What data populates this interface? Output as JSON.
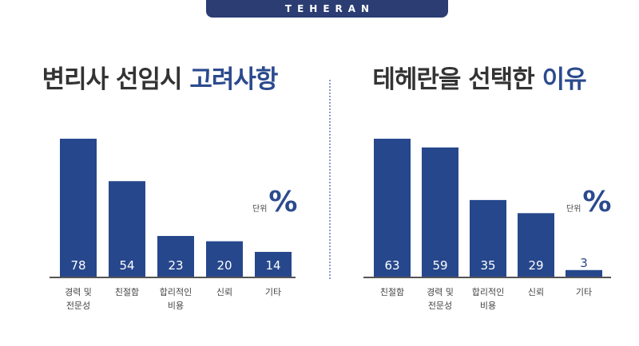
{
  "banner": "TEHERAN",
  "chart_data": [
    {
      "type": "bar",
      "title_plain": "변리사 선임시 ",
      "title_accent": "고려사항",
      "unit_label": "단위",
      "unit_sign": "%",
      "categories": [
        "경력 및\n전문성",
        "친절함",
        "합리적인\n비용",
        "신뢰",
        "기타"
      ],
      "values": [
        78,
        54,
        23,
        20,
        14
      ],
      "ylim": [
        0,
        78
      ],
      "grid": false
    },
    {
      "type": "bar",
      "title_plain": "테헤란을 선택한 ",
      "title_accent": "이유",
      "unit_label": "단위",
      "unit_sign": "%",
      "categories": [
        "친절함",
        "경력 및\n전문성",
        "합리적인\n비용",
        "신뢰",
        "기타"
      ],
      "values": [
        63,
        59,
        35,
        29,
        3
      ],
      "ylim": [
        0,
        63
      ],
      "grid": false
    }
  ],
  "colors": {
    "bar": "#26478c",
    "accent": "#2b4a8e",
    "axis": "#555555",
    "banner": "#2b3d73"
  }
}
